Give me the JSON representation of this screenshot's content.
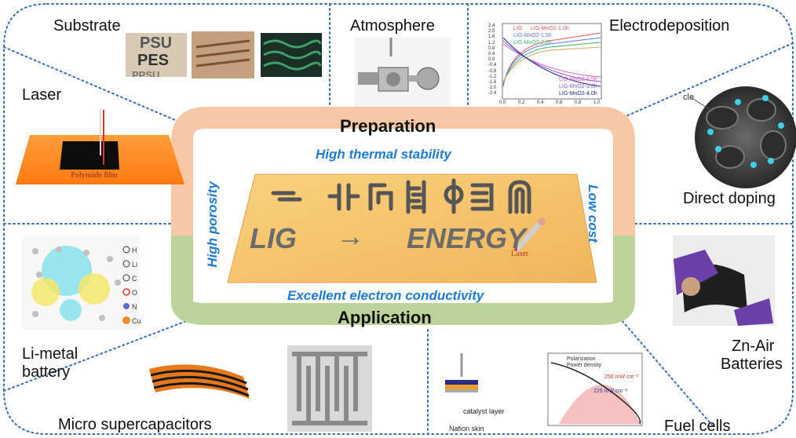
{
  "center": {
    "top_header": "Preparation",
    "bottom_header": "Application",
    "property_top": "High thermal stability",
    "property_bottom": "Excellent electron conductivity",
    "property_left": "High porosity",
    "property_right": "Low cost",
    "lig": "LIG",
    "arrow": "→",
    "energy": "ENERGY",
    "laser": "Laser"
  },
  "preparation": {
    "substrate": {
      "label": "Substrate",
      "polymer_names": [
        "PSU",
        "PES",
        "PPSU"
      ]
    },
    "atmosphere": {
      "label": "Atmosphere"
    },
    "electrodeposition": {
      "label": "Electrodeposition",
      "legend_top": [
        "LIG",
        "LIG-MnO2-1.0h",
        "LIG-MnO2-1.5h",
        "LIG-MnO2-2.0h"
      ],
      "legend_bottom": [
        "LIG-MnO2-2.5h",
        "LIG-MnO2-3.0h",
        "LIG-MnO2-4.0h"
      ],
      "y_ticks": [
        "2.4",
        "2.0",
        "1.6",
        "1.2",
        "0.8",
        "0.4",
        "0.0",
        "-0.4",
        "-0.8",
        "-1.2",
        "-1.6",
        "-2.0",
        "-2.4"
      ],
      "x_ticks": [
        "0.0",
        "0.2",
        "0.4",
        "0.6",
        "0.8",
        "1.0"
      ]
    },
    "laser": {
      "label": "Laser",
      "film_label": "Polymide film"
    },
    "direct_doping": {
      "label": "Direct doping",
      "partial_word": "cle"
    }
  },
  "application": {
    "li_metal": {
      "label_line1": "Li-metal",
      "label_line2": "battery",
      "legend": [
        "H",
        "Li",
        "C",
        "O",
        "N",
        "Cu"
      ]
    },
    "micro_supercapacitors": {
      "label": "Micro supercapacitors"
    },
    "fuel_cells": {
      "label": "Fuel cells",
      "catalyst_label": "catalyst layer",
      "nafion_label": "Nafion skin",
      "legend": [
        "Polarization",
        "Power density"
      ],
      "annotations": [
        "250 mW cm⁻²",
        "225 mW cm⁻²"
      ]
    },
    "zn_air": {
      "label_line1": "Zn-Air",
      "label_line2": "Batteries"
    }
  },
  "colors": {
    "orange_frame": "#f7c7a6",
    "green_frame": "#bcd49a",
    "dotted_border": "#3b6db3",
    "property_blue": "#1e7bd6",
    "lig_plate": "#f6c46a",
    "big_text_gray": "#6b6b6b"
  }
}
